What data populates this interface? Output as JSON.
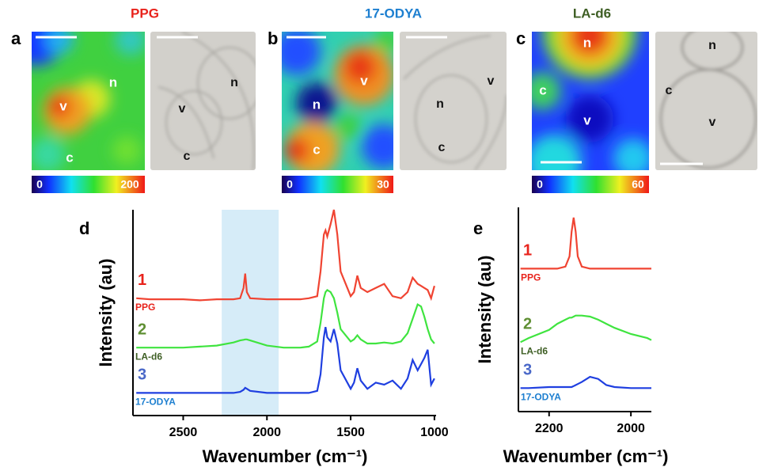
{
  "panels": [
    {
      "letter": "a",
      "title": "PPG",
      "title_color": "#e8231c",
      "colorbar": {
        "min": 0,
        "max": 200
      },
      "map_labels": [
        "n",
        "v",
        "c"
      ],
      "image_labels": [
        "n",
        "v",
        "c"
      ]
    },
    {
      "letter": "b",
      "title": "17-ODYA",
      "title_color": "#1d7fd0",
      "colorbar": {
        "min": 0,
        "max": 30
      },
      "map_labels": [
        "v",
        "n",
        "c"
      ],
      "image_labels": [
        "v",
        "n",
        "c"
      ]
    },
    {
      "letter": "c",
      "title": "LA-d6",
      "title_color": "#3f5f25",
      "colorbar": {
        "min": 0,
        "max": 60
      },
      "map_labels": [
        "n",
        "c",
        "v"
      ],
      "image_labels": [
        "n",
        "c",
        "v"
      ]
    }
  ],
  "chart_data": [
    {
      "type": "line",
      "panel_label": "d",
      "y_label": "Intensity (au)",
      "x_label": "Wavenumber (cm⁻¹)",
      "xlim": [
        2800,
        990
      ],
      "ylim": [
        0,
        100
      ],
      "xticks": [
        2500,
        2000,
        1500,
        1000
      ],
      "band": [
        2270,
        1930
      ],
      "band_color": "#d6ecf8",
      "x": [
        2780,
        2700,
        2600,
        2500,
        2400,
        2300,
        2200,
        2160,
        2140,
        2130,
        2120,
        2100,
        2000,
        1900,
        1800,
        1750,
        1700,
        1680,
        1660,
        1650,
        1640,
        1620,
        1600,
        1580,
        1560,
        1500,
        1480,
        1460,
        1440,
        1400,
        1350,
        1300,
        1250,
        1200,
        1160,
        1130,
        1100,
        1080,
        1060,
        1040,
        1020,
        1000
      ],
      "series": [
        {
          "name": "PPG",
          "label": "1",
          "color": "#f04432",
          "label_color": "#e8231c",
          "name_color": "#e8231c",
          "values": [
            57,
            56.5,
            56.5,
            56.5,
            56,
            56.5,
            56.5,
            57,
            62,
            69,
            60,
            57,
            56.5,
            56.5,
            56.5,
            57,
            58,
            70,
            88,
            90,
            87,
            93,
            100,
            88,
            70,
            58,
            60,
            68,
            62,
            60,
            62,
            64,
            58,
            57,
            60,
            67,
            64,
            63,
            62,
            61,
            57,
            63
          ]
        },
        {
          "name": "LA-d6",
          "label": "2",
          "color": "#3fe43f",
          "label_color": "#5f8f33",
          "name_color": "#3f5f25",
          "values": [
            33,
            33,
            33,
            33,
            33.5,
            34,
            35.5,
            36.5,
            36.8,
            37,
            37,
            36.5,
            34,
            33,
            33,
            33.5,
            36,
            45,
            57,
            60,
            61,
            60,
            57,
            50,
            42,
            36,
            37,
            39,
            37,
            35,
            35,
            35.5,
            35,
            36,
            40,
            47,
            54,
            53,
            48,
            42,
            37,
            35
          ]
        },
        {
          "name": "17-ODYA",
          "label": "3",
          "color": "#1f3fe0",
          "label_color": "#4a68c8",
          "name_color": "#1d7fd0",
          "values": [
            11,
            11,
            11,
            11,
            11,
            11,
            11,
            11.5,
            12.5,
            13.5,
            13,
            12,
            11,
            11,
            11,
            11,
            12,
            20,
            38,
            43,
            38,
            36,
            42,
            35,
            22,
            13,
            16,
            23,
            17,
            13,
            16,
            15,
            17,
            13,
            18,
            27,
            22,
            25,
            28,
            32,
            15,
            18
          ]
        }
      ]
    },
    {
      "type": "line",
      "panel_label": "e",
      "y_label": "Intensity (au)",
      "x_label": "Wavenumber (cm⁻¹)",
      "xlim": [
        2275,
        1950
      ],
      "ylim": [
        0,
        100
      ],
      "xticks": [
        2200,
        2000
      ],
      "x": [
        2270,
        2250,
        2200,
        2180,
        2160,
        2150,
        2145,
        2140,
        2135,
        2130,
        2120,
        2100,
        2080,
        2060,
        2040,
        2000,
        1960,
        1950
      ],
      "series": [
        {
          "name": "PPG",
          "label": "1",
          "color": "#f04432",
          "label_color": "#e8231c",
          "name_color": "#e8231c",
          "values": [
            70,
            70,
            70,
            70,
            71,
            76,
            88,
            95,
            88,
            76,
            71,
            70,
            70,
            70,
            70,
            70,
            70,
            70
          ]
        },
        {
          "name": "LA-d6",
          "label": "2",
          "color": "#3fe43f",
          "label_color": "#5f8f33",
          "name_color": "#3f5f25",
          "values": [
            34,
            36,
            40,
            43,
            45,
            46,
            46,
            46.5,
            47,
            47,
            47,
            46.5,
            45,
            43,
            41,
            38,
            36,
            35
          ]
        },
        {
          "name": "17-ODYA",
          "label": "3",
          "color": "#1f3fe0",
          "label_color": "#4a68c8",
          "name_color": "#1d7fd0",
          "values": [
            11.5,
            11.5,
            12,
            12,
            12,
            12,
            12,
            12.5,
            13,
            13.5,
            14.5,
            17,
            16,
            13,
            12,
            11.5,
            11.5,
            11.5
          ]
        }
      ]
    }
  ]
}
